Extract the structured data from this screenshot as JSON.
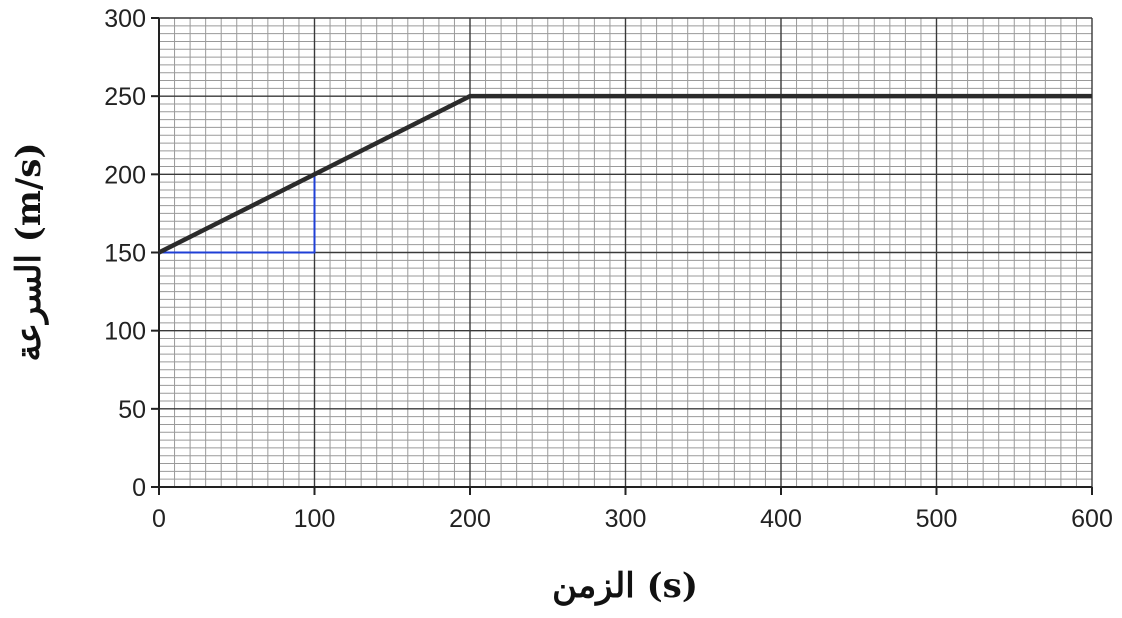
{
  "chart_data": {
    "type": "line",
    "xlabel": "الزمن (s)",
    "ylabel": "السرعة (m/s)",
    "xlim": [
      0,
      600
    ],
    "ylim": [
      0,
      300
    ],
    "x_ticks": [
      0,
      100,
      200,
      300,
      400,
      500,
      600
    ],
    "y_ticks": [
      0,
      50,
      100,
      150,
      200,
      250,
      300
    ],
    "x_major_step": 100,
    "x_minor_step": 10,
    "y_major_step": 50,
    "y_minor_step": 5,
    "grid": true,
    "series": [
      {
        "color": "#2b2b2b",
        "points": [
          [
            0,
            150
          ],
          [
            200,
            250
          ],
          [
            600,
            250
          ]
        ]
      }
    ],
    "annotations": [
      {
        "type": "slope-triangle",
        "color": "#1f3fd6",
        "points": [
          [
            0,
            150
          ],
          [
            100,
            150
          ],
          [
            100,
            200
          ]
        ]
      }
    ]
  },
  "colors": {
    "minor_grid": "#9a9a9a",
    "major_grid": "#3a3a3a",
    "axis": "#222222"
  }
}
